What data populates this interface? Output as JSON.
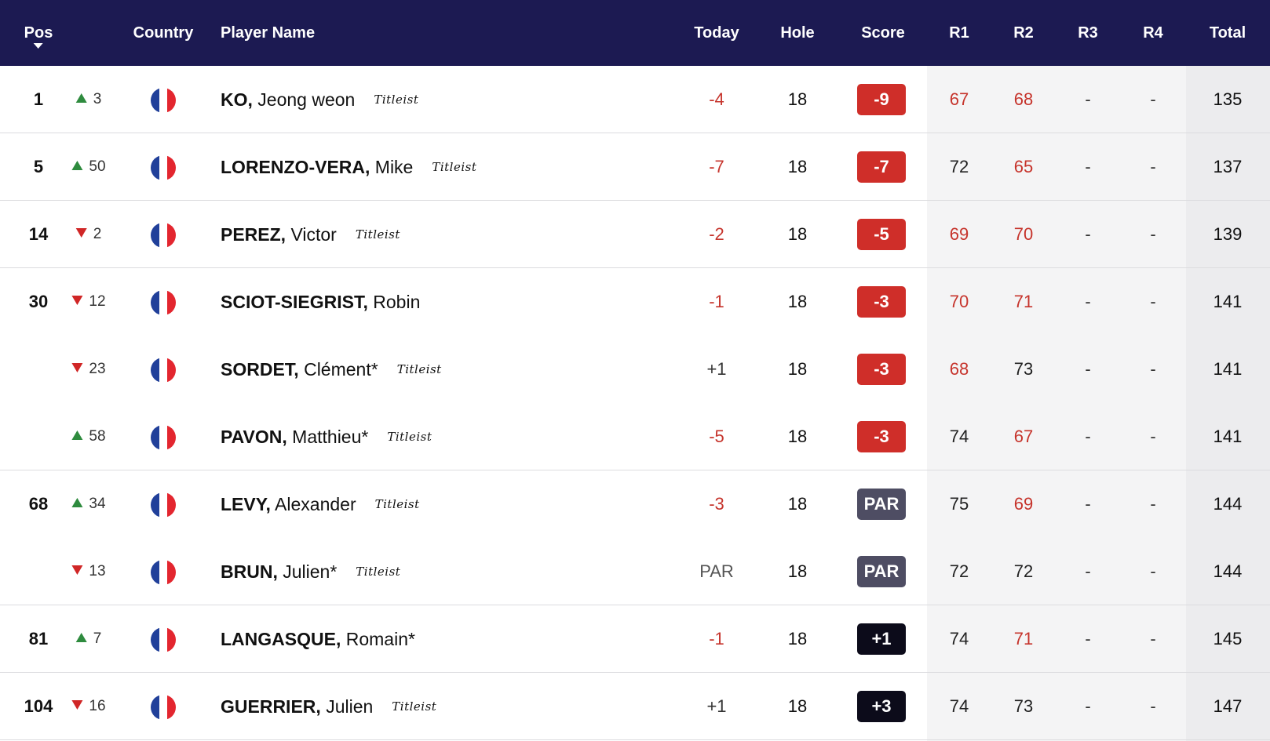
{
  "header": {
    "pos": "Pos",
    "country": "Country",
    "player": "Player Name",
    "today": "Today",
    "hole": "Hole",
    "score": "Score",
    "r1": "R1",
    "r2": "R2",
    "r3": "R3",
    "r4": "R4",
    "total": "Total"
  },
  "colors": {
    "header_bg": "#1c1a52",
    "under_par": "#cf2e29",
    "even_par": "#4e4d63",
    "over_par": "#0c0b1a",
    "move_up": "#2e8b3e",
    "move_down": "#d02626"
  },
  "rows": [
    {
      "pos": "1",
      "move_dir": "up",
      "move": "3",
      "flag": "france-flag-icon",
      "last": "KO,",
      "first": "Jeong weon",
      "sponsor": "Titleist",
      "today": "-4",
      "today_style": "red",
      "hole": "18",
      "score": "-9",
      "score_style": "red",
      "r1": "67",
      "r1_style": "red",
      "r2": "68",
      "r2_style": "red",
      "r3": "-",
      "r4": "-",
      "total": "135",
      "sep": true
    },
    {
      "pos": "5",
      "move_dir": "up",
      "move": "50",
      "flag": "france-flag-icon",
      "last": "LORENZO-VERA,",
      "first": "Mike",
      "sponsor": "Titleist",
      "today": "-7",
      "today_style": "red",
      "hole": "18",
      "score": "-7",
      "score_style": "red",
      "r1": "72",
      "r1_style": "normal",
      "r2": "65",
      "r2_style": "red",
      "r3": "-",
      "r4": "-",
      "total": "137",
      "sep": true
    },
    {
      "pos": "14",
      "move_dir": "down",
      "move": "2",
      "flag": "france-flag-icon",
      "last": "PEREZ,",
      "first": "Victor",
      "sponsor": "Titleist",
      "today": "-2",
      "today_style": "red",
      "hole": "18",
      "score": "-5",
      "score_style": "red",
      "r1": "69",
      "r1_style": "red",
      "r2": "70",
      "r2_style": "red",
      "r3": "-",
      "r4": "-",
      "total": "139",
      "sep": true
    },
    {
      "pos": "30",
      "move_dir": "down",
      "move": "12",
      "flag": "france-flag-icon",
      "last": "SCIOT-SIEGRIST,",
      "first": "Robin",
      "sponsor": "",
      "today": "-1",
      "today_style": "red",
      "hole": "18",
      "score": "-3",
      "score_style": "red",
      "r1": "70",
      "r1_style": "red",
      "r2": "71",
      "r2_style": "red",
      "r3": "-",
      "r4": "-",
      "total": "141",
      "sep": false
    },
    {
      "pos": "",
      "move_dir": "down",
      "move": "23",
      "flag": "france-flag-icon",
      "last": "SORDET,",
      "first": "Clément*",
      "sponsor": "Titleist",
      "today": "+1",
      "today_style": "neutral",
      "hole": "18",
      "score": "-3",
      "score_style": "red",
      "r1": "68",
      "r1_style": "red",
      "r2": "73",
      "r2_style": "normal",
      "r3": "-",
      "r4": "-",
      "total": "141",
      "sep": false
    },
    {
      "pos": "",
      "move_dir": "up",
      "move": "58",
      "flag": "france-flag-icon",
      "last": "PAVON,",
      "first": "Matthieu*",
      "sponsor": "Titleist",
      "today": "-5",
      "today_style": "red",
      "hole": "18",
      "score": "-3",
      "score_style": "red",
      "r1": "74",
      "r1_style": "normal",
      "r2": "67",
      "r2_style": "red",
      "r3": "-",
      "r4": "-",
      "total": "141",
      "sep": true
    },
    {
      "pos": "68",
      "move_dir": "up",
      "move": "34",
      "flag": "france-flag-icon",
      "last": "LEVY,",
      "first": "Alexander",
      "sponsor": "Titleist",
      "today": "-3",
      "today_style": "red",
      "hole": "18",
      "score": "PAR",
      "score_style": "par",
      "r1": "75",
      "r1_style": "normal",
      "r2": "69",
      "r2_style": "red",
      "r3": "-",
      "r4": "-",
      "total": "144",
      "sep": false
    },
    {
      "pos": "",
      "move_dir": "down",
      "move": "13",
      "flag": "france-flag-icon",
      "last": "BRUN,",
      "first": "Julien*",
      "sponsor": "Titleist",
      "today": "PAR",
      "today_style": "par",
      "hole": "18",
      "score": "PAR",
      "score_style": "par",
      "r1": "72",
      "r1_style": "normal",
      "r2": "72",
      "r2_style": "normal",
      "r3": "-",
      "r4": "-",
      "total": "144",
      "sep": true
    },
    {
      "pos": "81",
      "move_dir": "up",
      "move": "7",
      "flag": "france-flag-icon",
      "last": "LANGASQUE,",
      "first": "Romain*",
      "sponsor": "",
      "today": "-1",
      "today_style": "red",
      "hole": "18",
      "score": "+1",
      "score_style": "black",
      "r1": "74",
      "r1_style": "normal",
      "r2": "71",
      "r2_style": "red",
      "r3": "-",
      "r4": "-",
      "total": "145",
      "sep": true
    },
    {
      "pos": "104",
      "move_dir": "down",
      "move": "16",
      "flag": "france-flag-icon",
      "last": "GUERRIER,",
      "first": "Julien",
      "sponsor": "Titleist",
      "today": "+1",
      "today_style": "neutral",
      "hole": "18",
      "score": "+3",
      "score_style": "black",
      "r1": "74",
      "r1_style": "normal",
      "r2": "73",
      "r2_style": "normal",
      "r3": "-",
      "r4": "-",
      "total": "147",
      "sep": true
    }
  ]
}
